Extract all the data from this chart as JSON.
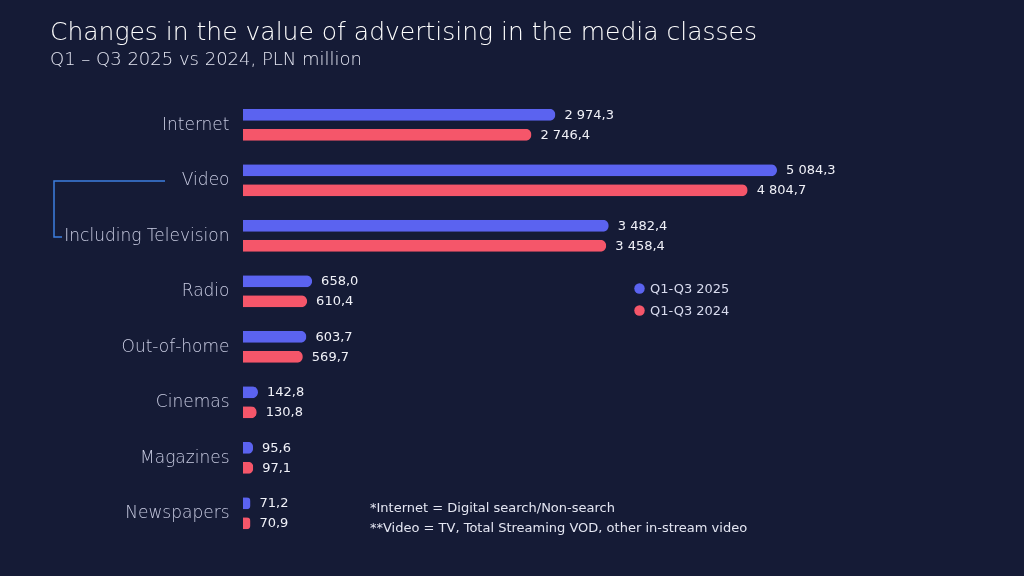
{
  "chart_data": {
    "type": "bar",
    "orientation": "horizontal",
    "title": "Changes in the value of advertising in the media classes",
    "subtitle": "Q1 – Q3 2025 vs 2024, PLN million",
    "categories": [
      "Internet",
      "Video",
      "Including Television",
      "Radio",
      "Out-of-home",
      "Cinemas",
      "Magazines",
      "Newspapers"
    ],
    "series": [
      {
        "name": "Q1-Q3 2025",
        "color": "#5b63f0",
        "values": [
          2974.3,
          5084.3,
          3482.4,
          658.0,
          603.7,
          142.8,
          95.6,
          71.2
        ],
        "value_labels": [
          "2 974,3",
          "5 084,3",
          "3 482,4",
          "658,0",
          "603,7",
          "142,8",
          "95,6",
          "71,2"
        ]
      },
      {
        "name": "Q1-Q3 2024",
        "color": "#f5566a",
        "values": [
          2746.4,
          4804.7,
          3458.4,
          610.4,
          569.7,
          130.8,
          97.1,
          70.9
        ],
        "value_labels": [
          "2 746,4",
          "4 804,7",
          "3 458,4",
          "610,4",
          "569,7",
          "130,8",
          "97,1",
          "70,9"
        ]
      }
    ],
    "legend": "right",
    "annotations": [
      "*Internet = Digital search/Non-search",
      "**Video = TV, Total Streaming VOD, other in-stream video"
    ]
  }
}
